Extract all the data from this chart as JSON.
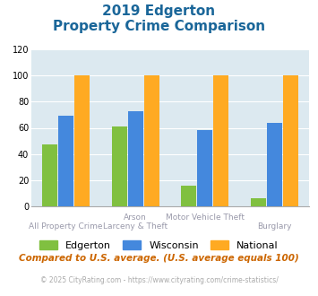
{
  "title_line1": "2019 Edgerton",
  "title_line2": "Property Crime Comparison",
  "x_labels_top": [
    "",
    "Arson",
    "Motor Vehicle Theft",
    ""
  ],
  "x_labels_bot": [
    "All Property Crime",
    "Larceny & Theft",
    "",
    "Burglary"
  ],
  "series": {
    "Edgerton": [
      47,
      61,
      16,
      6
    ],
    "Wisconsin": [
      69,
      73,
      58,
      64
    ],
    "National": [
      100,
      100,
      100,
      100
    ]
  },
  "colors": {
    "Edgerton": "#80c040",
    "Wisconsin": "#4488dd",
    "National": "#ffaa22"
  },
  "ylim": [
    0,
    120
  ],
  "yticks": [
    0,
    20,
    40,
    60,
    80,
    100,
    120
  ],
  "background_color": "#dce9f0",
  "title_color": "#1a6699",
  "xlabel_color": "#9999aa",
  "footnote_color": "#cc6600",
  "credit_color": "#aaaaaa",
  "footnote": "Compared to U.S. average. (U.S. average equals 100)",
  "credit": "© 2025 CityRating.com - https://www.cityrating.com/crime-statistics/"
}
